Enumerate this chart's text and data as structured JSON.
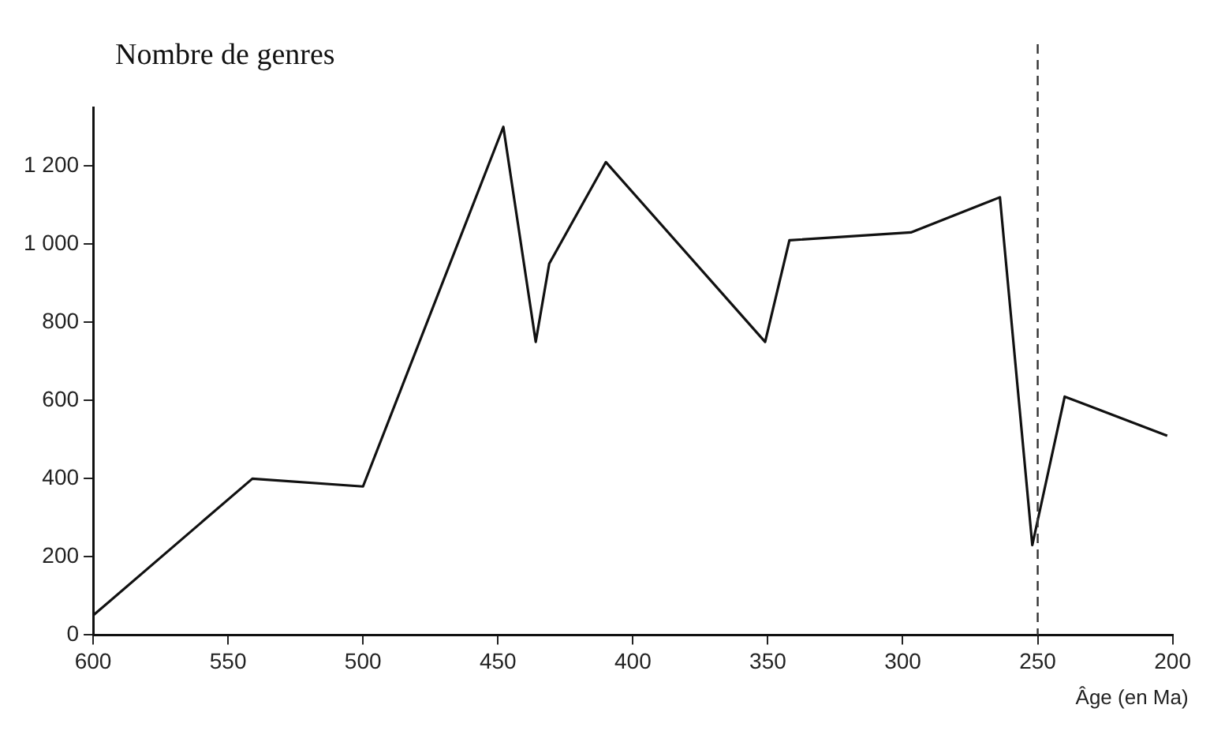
{
  "chart_data": {
    "type": "line",
    "ylabel": "Nombre de genres",
    "xlabel": "Âge (en Ma)",
    "series": [
      {
        "color": "#111111",
        "x": [
          600,
          541,
          500,
          448,
          436,
          431,
          410,
          351,
          342,
          297,
          264,
          252,
          240,
          202
        ],
        "values": [
          50,
          400,
          380,
          1300,
          750,
          950,
          1210,
          750,
          1010,
          1030,
          1120,
          230,
          610,
          510
        ]
      }
    ],
    "xlim": [
      600,
      200
    ],
    "xticks": [
      600,
      550,
      500,
      450,
      400,
      350,
      300,
      250,
      200
    ],
    "ylim": [
      0,
      1350
    ],
    "yticks": [
      0,
      200,
      400,
      600,
      800,
      {
        "value": 1000,
        "label": "1 000"
      },
      {
        "value": 1200,
        "label": "1 200"
      }
    ],
    "ref_lines": [
      {
        "axis": "x",
        "value": 250,
        "line_style": "dashed",
        "color": "#333333"
      }
    ],
    "grid": false,
    "legend": false,
    "marker": "none",
    "line_style": "solid"
  }
}
